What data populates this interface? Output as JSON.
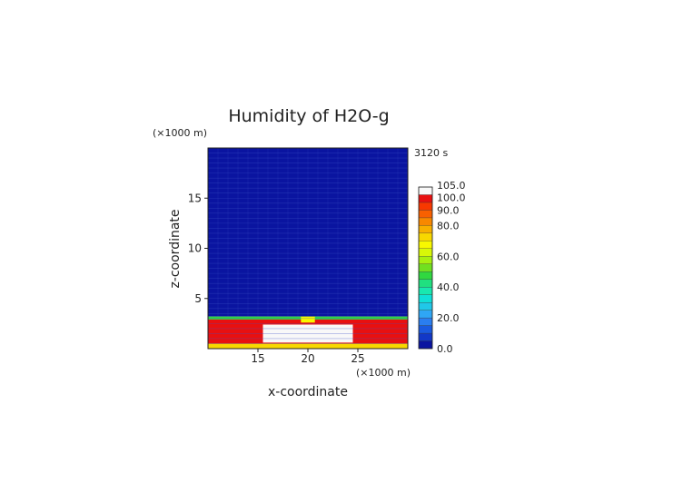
{
  "chart_data": {
    "type": "heatmap",
    "title": "Humidity of H2O-g",
    "time_label": "3120 s",
    "xlabel": "x-coordinate",
    "ylabel": "z-coordinate",
    "x_unit": "(×1000 m)",
    "z_unit": "(×1000 m)",
    "xlim": [
      10,
      30
    ],
    "zlim": [
      0,
      20
    ],
    "x_ticks": [
      15,
      20,
      25
    ],
    "z_ticks": [
      5,
      10,
      15
    ],
    "x_tick_labels": [
      "15",
      "20",
      "25"
    ],
    "z_tick_labels": [
      "5",
      "10",
      "15"
    ],
    "colorbar": {
      "levels": [
        0,
        5,
        10,
        15,
        20,
        25,
        30,
        35,
        40,
        45,
        50,
        55,
        60,
        65,
        70,
        75,
        80,
        85,
        90,
        95,
        100,
        105
      ],
      "colors": [
        "#0a14a0",
        "#1238c8",
        "#1a5ae0",
        "#2a7ef0",
        "#2fa6f5",
        "#20c8e8",
        "#10e0d8",
        "#18e8b0",
        "#20e080",
        "#30d840",
        "#70e020",
        "#a8f010",
        "#d8f808",
        "#f8f800",
        "#f8d800",
        "#f8b000",
        "#f88800",
        "#f86000",
        "#f83800",
        "#e81010",
        "#f8f8f8"
      ],
      "labels": [
        "0.0",
        "20.0",
        "40.0",
        "60.0",
        "80.0",
        "90.0",
        "100.0",
        "105.0"
      ],
      "label_values": [
        0,
        20,
        40,
        60,
        80,
        90,
        100,
        105
      ]
    },
    "field_regions": [
      {
        "region": "upper atmosphere",
        "x": [
          10,
          30
        ],
        "z": [
          3.2,
          20
        ],
        "value": 2
      },
      {
        "region": "moist layer top edge",
        "x": [
          10,
          30
        ],
        "z": [
          2.9,
          3.2
        ],
        "value": 45
      },
      {
        "region": "moist layer",
        "x": [
          10,
          30
        ],
        "z": [
          0.3,
          2.9
        ],
        "value": 95
      },
      {
        "region": "saturated core",
        "x": [
          15.5,
          24.5
        ],
        "z": [
          0.6,
          2.4
        ],
        "value": 101
      },
      {
        "region": "surface layer",
        "x": [
          10,
          30
        ],
        "z": [
          0,
          0.5
        ],
        "value": 70
      },
      {
        "region": "updraft plume",
        "x": [
          19.3,
          20.7
        ],
        "z": [
          2.6,
          3.2
        ],
        "value": 65
      }
    ]
  }
}
